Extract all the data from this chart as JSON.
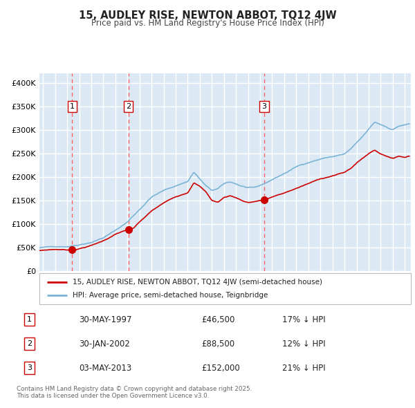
{
  "title": "15, AUDLEY RISE, NEWTON ABBOT, TQ12 4JW",
  "subtitle": "Price paid vs. HM Land Registry's House Price Index (HPI)",
  "bg_color": "#dce9f5",
  "grid_color": "#ffffff",
  "ylim": [
    0,
    420000
  ],
  "yticks": [
    0,
    50000,
    100000,
    150000,
    200000,
    250000,
    300000,
    350000,
    400000
  ],
  "ytick_labels": [
    "£0",
    "£50K",
    "£100K",
    "£150K",
    "£200K",
    "£250K",
    "£300K",
    "£350K",
    "£400K"
  ],
  "xlim_start": 1994.7,
  "xlim_end": 2025.5,
  "sale_dates": [
    1997.41,
    2002.08,
    2013.34
  ],
  "sale_prices": [
    46500,
    88500,
    152000
  ],
  "sale_labels": [
    "1",
    "2",
    "3"
  ],
  "sale_label_pcts": [
    "17% ↓ HPI",
    "12% ↓ HPI",
    "21% ↓ HPI"
  ],
  "sale_label_dates": [
    "30-MAY-1997",
    "30-JAN-2002",
    "03-MAY-2013"
  ],
  "red_line_color": "#cc0000",
  "blue_line_color": "#7ab3d4",
  "dashed_line_color": "#ff5555",
  "legend_label_red": "15, AUDLEY RISE, NEWTON ABBOT, TQ12 4JW (semi-detached house)",
  "legend_label_blue": "HPI: Average price, semi-detached house, Teignbridge",
  "footer_text": "Contains HM Land Registry data © Crown copyright and database right 2025.\nThis data is licensed under the Open Government Licence v3.0."
}
